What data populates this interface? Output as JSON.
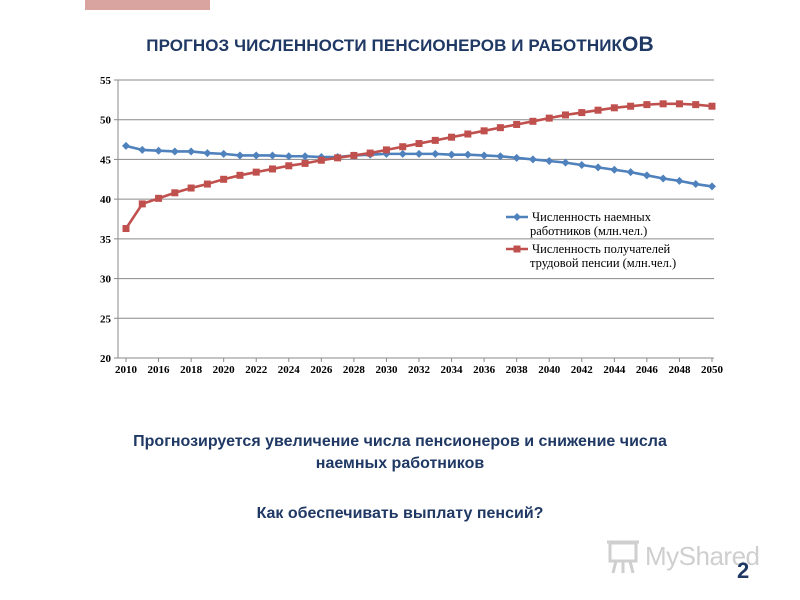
{
  "slide": {
    "title_main": "ПРОГНОЗ ЧИСЛЕННОСТИ ПЕНСИОНЕРОВ И РАБОТНИК",
    "title_tail": "ОВ",
    "text_line1": "Прогнозируется увеличение числа пенсионеров и снижение числа",
    "text_line2": "наемных работников",
    "question": "Как обеспечивать выплату пенсий?",
    "logo_text": "MyShared",
    "page_number": "2"
  },
  "colors": {
    "title": "#1f3864",
    "series_workers": "#4f81bd",
    "series_pensioners": "#c0504d",
    "accent_bar": "#d9a3a0"
  },
  "chart_data": {
    "type": "line",
    "ylim": [
      20,
      55
    ],
    "yticks": [
      "20",
      "25",
      "30",
      "35",
      "40",
      "45",
      "50",
      "55"
    ],
    "xtick_labels": [
      "2010",
      "2016",
      "2018",
      "2020",
      "2022",
      "2024",
      "2026",
      "2028",
      "2030",
      "2032",
      "2034",
      "2036",
      "2038",
      "2040",
      "2042",
      "2044",
      "2046",
      "2048",
      "2050"
    ],
    "grid": true,
    "legend_position": "right",
    "series": [
      {
        "name_line1": "Численность наемных",
        "name_line2": "работников (млн.чел.)",
        "marker": "diamond",
        "values": [
          46.7,
          46.2,
          46.1,
          46.0,
          46.0,
          45.8,
          45.7,
          45.5,
          45.5,
          45.5,
          45.4,
          45.4,
          45.3,
          45.3,
          45.5,
          45.6,
          45.7,
          45.7,
          45.7,
          45.7,
          45.6,
          45.6,
          45.5,
          45.4,
          45.2,
          45.0,
          44.8,
          44.6,
          44.3,
          44.0,
          43.7,
          43.4,
          43.0,
          42.6,
          42.3,
          41.9,
          41.6
        ]
      },
      {
        "name_line1": "Численность получателей",
        "name_line2": "трудовой пенсии (млн.чел.)",
        "marker": "square",
        "values": [
          36.3,
          39.4,
          40.1,
          40.8,
          41.4,
          41.9,
          42.5,
          43.0,
          43.4,
          43.8,
          44.2,
          44.5,
          44.9,
          45.2,
          45.5,
          45.8,
          46.2,
          46.6,
          47.0,
          47.4,
          47.8,
          48.2,
          48.6,
          49.0,
          49.4,
          49.8,
          50.2,
          50.6,
          50.9,
          51.2,
          51.5,
          51.7,
          51.9,
          52.0,
          52.0,
          51.9,
          51.7
        ]
      }
    ]
  }
}
